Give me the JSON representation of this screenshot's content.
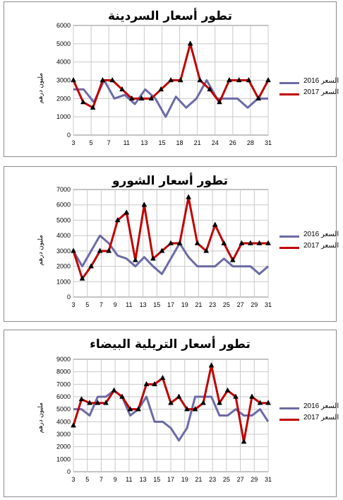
{
  "chart_data": [
    {
      "type": "line",
      "title": "تطور أسعار السردينة",
      "ylabel": "مليون درهم",
      "ylim": [
        0,
        6000
      ],
      "yticks": [
        0,
        1000,
        2000,
        3000,
        4000,
        5000,
        6000
      ],
      "xticks": [
        "3",
        "5",
        "7",
        "11",
        "13",
        "15",
        "18",
        "21",
        "24",
        "26",
        "28",
        "31"
      ],
      "x_count": 24,
      "series": [
        {
          "name": "2016 السعر",
          "color": "#6b6ba6",
          "values": [
            2500,
            2500,
            1800,
            3000,
            2000,
            2200,
            1700,
            2500,
            2000,
            1000,
            2100,
            1500,
            2000,
            3000,
            2000,
            2000,
            2000,
            1500,
            2000,
            2000
          ]
        },
        {
          "name": "2017 السعر",
          "color": "#c00000",
          "values": [
            3000,
            1800,
            1500,
            3000,
            3000,
            2500,
            2000,
            2000,
            2000,
            2500,
            3000,
            3000,
            5000,
            3000,
            2500,
            1800,
            3000,
            3000,
            3000,
            2000,
            3000
          ]
        }
      ]
    },
    {
      "type": "line",
      "title": "تطور أسعار الشورو",
      "ylabel": "مليون درهم",
      "ylim": [
        0,
        7000
      ],
      "yticks": [
        0,
        1000,
        2000,
        3000,
        4000,
        5000,
        6000,
        7000
      ],
      "xticks": [
        "3",
        "5",
        "7",
        "9",
        "11",
        "13",
        "15",
        "17",
        "19",
        "21",
        "23",
        "25",
        "27",
        "29",
        "31"
      ],
      "x_count": 29,
      "series": [
        {
          "name": "2016 السعر",
          "color": "#6b6ba6",
          "values": [
            3000,
            2000,
            3000,
            4000,
            3500,
            2700,
            2500,
            2000,
            2600,
            2000,
            1500,
            2500,
            3500,
            2600,
            2000,
            2000,
            2000,
            2500,
            2000,
            2000,
            2000,
            1500,
            2000
          ]
        },
        {
          "name": "2017 السعر",
          "color": "#c00000",
          "values": [
            3000,
            1200,
            2000,
            3000,
            3000,
            5000,
            5500,
            2400,
            6000,
            2500,
            3000,
            3500,
            3500,
            6500,
            3500,
            3000,
            4700,
            3500,
            2400,
            3500,
            3500,
            3500,
            3500
          ]
        }
      ]
    },
    {
      "type": "line",
      "title": "تطور أسعار التريلية البيضاء",
      "ylabel": "مليون درهم",
      "ylim": [
        0,
        9000
      ],
      "yticks": [
        0,
        1000,
        2000,
        3000,
        4000,
        5000,
        6000,
        7000,
        8000,
        9000
      ],
      "xticks": [
        "3",
        "5",
        "7",
        "9",
        "11",
        "13",
        "15",
        "17",
        "19",
        "21",
        "23",
        "25",
        "27",
        "29",
        "31"
      ],
      "x_count": 29,
      "series": [
        {
          "name": "2016 السعر",
          "color": "#6b6ba6",
          "values": [
            5000,
            5000,
            4500,
            6000,
            6000,
            6500,
            6000,
            4500,
            5000,
            6000,
            4000,
            4000,
            3500,
            2500,
            3500,
            6000,
            6000,
            6000,
            4500,
            4500,
            5000,
            4500,
            4500,
            5000,
            4000
          ]
        },
        {
          "name": "2017 السعر",
          "color": "#c00000",
          "values": [
            3700,
            5800,
            5500,
            5500,
            5500,
            6500,
            6000,
            5000,
            5000,
            7000,
            7000,
            7500,
            5500,
            6000,
            5000,
            5000,
            5500,
            8500,
            5500,
            6500,
            6000,
            2400,
            6000,
            5500,
            5500
          ]
        }
      ]
    }
  ]
}
